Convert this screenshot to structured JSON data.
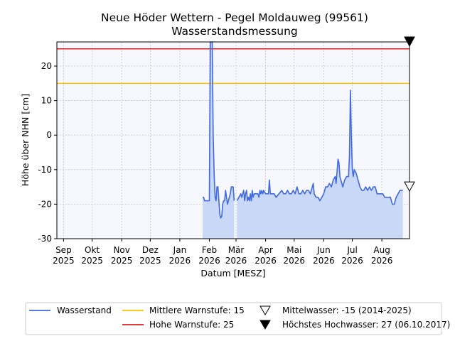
{
  "chart_data": {
    "type": "line",
    "title": "Neue Höder Wettern - Pegel Moldauweg (99561)",
    "subtitle": "Wasserstandsmessung",
    "xlabel": "Datum [MESZ]",
    "ylabel": "Höhe über NHN [cm]",
    "ylim": [
      -30,
      27
    ],
    "xlim": [
      "2025-08-25",
      "2026-08-30"
    ],
    "grid": true,
    "legend_position": "bottom",
    "y_ticks": [
      -30,
      -20,
      -10,
      0,
      10,
      20
    ],
    "x_ticks": [
      {
        "date": "2025-09-01",
        "month": "Sep",
        "year": "2025"
      },
      {
        "date": "2025-10-01",
        "month": "Okt",
        "year": "2025"
      },
      {
        "date": "2025-11-01",
        "month": "Nov",
        "year": "2025"
      },
      {
        "date": "2025-12-01",
        "month": "Dez",
        "year": "2025"
      },
      {
        "date": "2026-01-01",
        "month": "Jan",
        "year": "2026"
      },
      {
        "date": "2026-02-01",
        "month": "Feb",
        "year": "2026"
      },
      {
        "date": "2026-03-01",
        "month": "Mär",
        "year": "2026"
      },
      {
        "date": "2026-04-01",
        "month": "Apr",
        "year": "2026"
      },
      {
        "date": "2026-05-01",
        "month": "Mai",
        "year": "2026"
      },
      {
        "date": "2026-06-01",
        "month": "Jun",
        "year": "2026"
      },
      {
        "date": "2026-07-01",
        "month": "Jul",
        "year": "2026"
      },
      {
        "date": "2026-08-01",
        "month": "Aug",
        "year": "2026"
      }
    ],
    "series": [
      {
        "name": "Wasserstand",
        "color": "#4169e1",
        "fill": "#c9d8f7",
        "segments": [
          [
            [
              "2026-01-25",
              -18
            ],
            [
              "2026-01-26",
              -18
            ],
            [
              "2026-01-27",
              -19
            ],
            [
              "2026-01-28",
              -19
            ],
            [
              "2026-01-29",
              -19
            ],
            [
              "2026-01-30",
              -19
            ],
            [
              "2026-01-31",
              -19
            ],
            [
              "2026-02-01",
              -19
            ],
            [
              "2026-02-02",
              27
            ],
            [
              "2026-02-03",
              27
            ],
            [
              "2026-02-04",
              27
            ],
            [
              "2026-02-05",
              0
            ],
            [
              "2026-02-06",
              -11
            ],
            [
              "2026-02-07",
              -18
            ],
            [
              "2026-02-08",
              -19
            ],
            [
              "2026-02-09",
              -15
            ],
            [
              "2026-02-10",
              -15
            ],
            [
              "2026-02-11",
              -19
            ],
            [
              "2026-02-12",
              -23
            ],
            [
              "2026-02-13",
              -24
            ],
            [
              "2026-02-14",
              -23.5
            ],
            [
              "2026-02-15",
              -20
            ],
            [
              "2026-02-16",
              -19
            ],
            [
              "2026-02-17",
              -19
            ],
            [
              "2026-02-18",
              -16
            ],
            [
              "2026-02-19",
              -18
            ],
            [
              "2026-02-20",
              -20
            ],
            [
              "2026-02-21",
              -19
            ],
            [
              "2026-02-22",
              -18
            ],
            [
              "2026-02-23",
              -17
            ],
            [
              "2026-02-24",
              -15
            ],
            [
              "2026-02-25",
              -15
            ],
            [
              "2026-02-26",
              -15
            ],
            [
              "2026-02-27",
              -19
            ]
          ],
          [
            [
              "2026-03-02",
              -19
            ],
            [
              "2026-03-04",
              -18
            ],
            [
              "2026-03-06",
              -17
            ],
            [
              "2026-03-07",
              -18
            ],
            [
              "2026-03-08",
              -17
            ],
            [
              "2026-03-09",
              -16
            ],
            [
              "2026-03-10",
              -19
            ],
            [
              "2026-03-11",
              -17
            ],
            [
              "2026-03-12",
              -16
            ],
            [
              "2026-03-13",
              -19
            ],
            [
              "2026-03-14",
              -18
            ],
            [
              "2026-03-15",
              -19
            ],
            [
              "2026-03-16",
              -17
            ],
            [
              "2026-03-17",
              -19
            ],
            [
              "2026-03-18",
              -16
            ],
            [
              "2026-03-19",
              -18
            ],
            [
              "2026-03-20",
              -17
            ],
            [
              "2026-03-22",
              -17
            ],
            [
              "2026-03-24",
              -17
            ],
            [
              "2026-03-25",
              -18
            ],
            [
              "2026-03-26",
              -16
            ],
            [
              "2026-03-27",
              -17
            ],
            [
              "2026-03-28",
              -16
            ],
            [
              "2026-03-29",
              -17
            ],
            [
              "2026-03-30",
              -16
            ],
            [
              "2026-04-01",
              -17
            ],
            [
              "2026-04-04",
              -17
            ],
            [
              "2026-04-05",
              -13
            ],
            [
              "2026-04-06",
              -17
            ],
            [
              "2026-04-10",
              -17
            ],
            [
              "2026-04-12",
              -18
            ],
            [
              "2026-04-15",
              -17
            ],
            [
              "2026-04-18",
              -16
            ],
            [
              "2026-04-20",
              -17
            ],
            [
              "2026-04-22",
              -17
            ],
            [
              "2026-04-24",
              -16
            ],
            [
              "2026-04-26",
              -17
            ],
            [
              "2026-04-28",
              -17
            ],
            [
              "2026-04-30",
              -16
            ],
            [
              "2026-05-02",
              -17
            ],
            [
              "2026-05-04",
              -15
            ],
            [
              "2026-05-06",
              -17
            ],
            [
              "2026-05-08",
              -17
            ],
            [
              "2026-05-10",
              -16
            ],
            [
              "2026-05-12",
              -17
            ],
            [
              "2026-05-14",
              -16
            ],
            [
              "2026-05-16",
              -16
            ],
            [
              "2026-05-18",
              -17
            ],
            [
              "2026-05-20",
              -15
            ],
            [
              "2026-05-21",
              -14
            ],
            [
              "2026-05-22",
              -17
            ],
            [
              "2026-05-24",
              -18
            ],
            [
              "2026-05-26",
              -18
            ],
            [
              "2026-05-28",
              -19
            ],
            [
              "2026-05-30",
              -18
            ],
            [
              "2026-06-01",
              -17
            ],
            [
              "2026-06-03",
              -15
            ],
            [
              "2026-06-05",
              -15
            ],
            [
              "2026-06-07",
              -14
            ],
            [
              "2026-06-09",
              -15
            ],
            [
              "2026-06-11",
              -13
            ],
            [
              "2026-06-13",
              -12
            ],
            [
              "2026-06-14",
              -14
            ],
            [
              "2026-06-16",
              -7
            ],
            [
              "2026-06-17",
              -8
            ],
            [
              "2026-06-18",
              -12
            ],
            [
              "2026-06-20",
              -14
            ],
            [
              "2026-06-21",
              -15
            ],
            [
              "2026-06-23",
              -13
            ],
            [
              "2026-06-25",
              -12
            ],
            [
              "2026-06-27",
              -12
            ],
            [
              "2026-06-28",
              -6
            ],
            [
              "2026-06-29",
              13
            ],
            [
              "2026-06-30",
              0
            ],
            [
              "2026-07-01",
              -10
            ],
            [
              "2026-07-02",
              -12
            ],
            [
              "2026-07-03",
              -10
            ],
            [
              "2026-07-05",
              -11
            ],
            [
              "2026-07-07",
              -13
            ],
            [
              "2026-07-09",
              -15
            ],
            [
              "2026-07-11",
              -16
            ],
            [
              "2026-07-13",
              -16
            ],
            [
              "2026-07-15",
              -15
            ],
            [
              "2026-07-17",
              -16
            ],
            [
              "2026-07-19",
              -15
            ],
            [
              "2026-07-21",
              -16
            ],
            [
              "2026-07-23",
              -15
            ],
            [
              "2026-07-25",
              -15
            ],
            [
              "2026-07-27",
              -17
            ],
            [
              "2026-07-30",
              -17
            ],
            [
              "2026-08-02",
              -17
            ],
            [
              "2026-08-04",
              -18
            ],
            [
              "2026-08-08",
              -18
            ],
            [
              "2026-08-10",
              -18
            ],
            [
              "2026-08-12",
              -20
            ],
            [
              "2026-08-14",
              -20
            ],
            [
              "2026-08-16",
              -18
            ],
            [
              "2026-08-18",
              -17
            ],
            [
              "2026-08-20",
              -16
            ],
            [
              "2026-08-23",
              -16
            ]
          ]
        ]
      }
    ],
    "reference_lines": [
      {
        "name": "Mittlere Warnstufe: 15",
        "value": 15,
        "color": "#ffc000"
      },
      {
        "name": "Hohe Warnstufe: 25",
        "value": 25,
        "color": "#e02020"
      }
    ],
    "markers": [
      {
        "name": "Mittelwasser: -15 (2014-2025)",
        "value": -15,
        "symbol": "open-triangle-down"
      },
      {
        "name": "Höchstes Hochwasser: 27 (06.10.2017)",
        "value": 27,
        "symbol": "filled-triangle-down"
      }
    ]
  }
}
